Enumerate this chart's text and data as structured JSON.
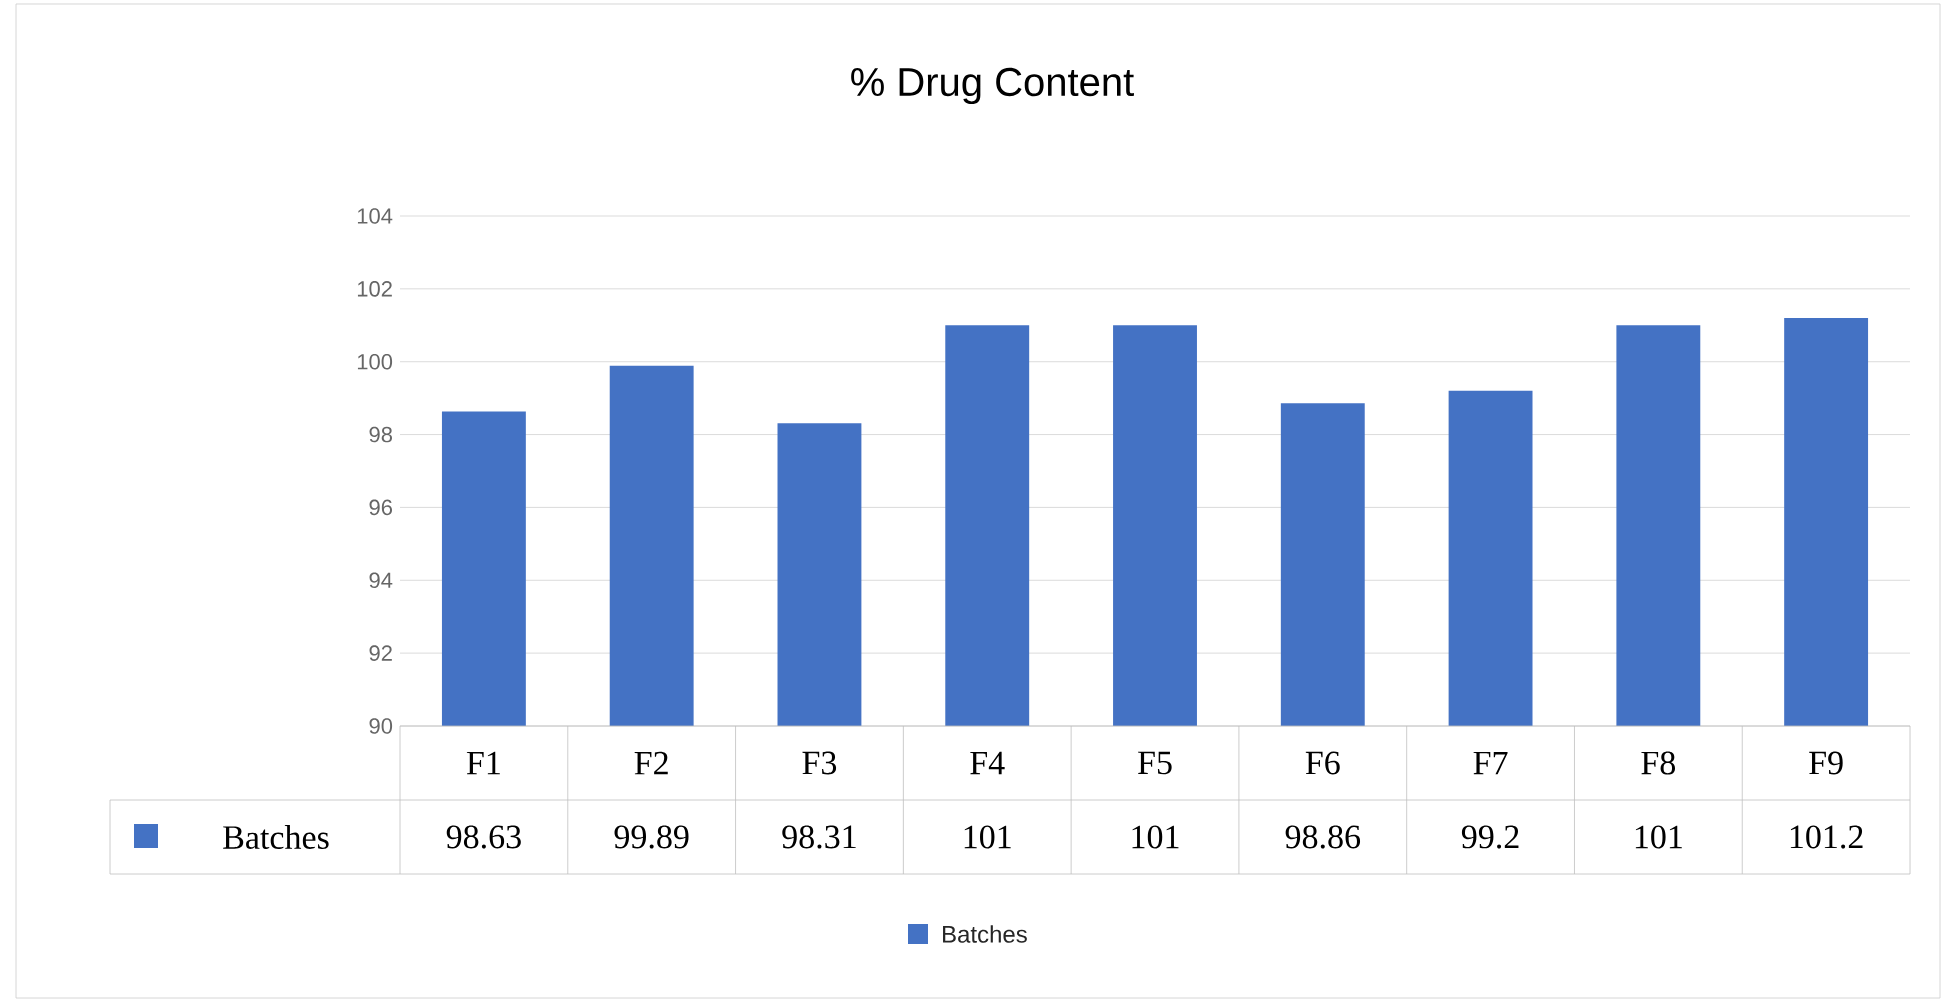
{
  "chart_data": {
    "type": "bar",
    "title": "% Drug Content",
    "categories": [
      "F1",
      "F2",
      "F3",
      "F4",
      "F5",
      "F6",
      "F7",
      "F8",
      "F9"
    ],
    "series": [
      {
        "name": "Batches",
        "color": "#4472c4",
        "values": [
          98.63,
          99.89,
          98.31,
          101,
          101,
          98.86,
          99.2,
          101,
          101.2
        ]
      }
    ],
    "ylim": [
      90,
      104
    ],
    "yticks": [
      90,
      92,
      94,
      96,
      98,
      100,
      102,
      104
    ],
    "grid": "y",
    "legend": "bottom",
    "data_labels": true
  }
}
